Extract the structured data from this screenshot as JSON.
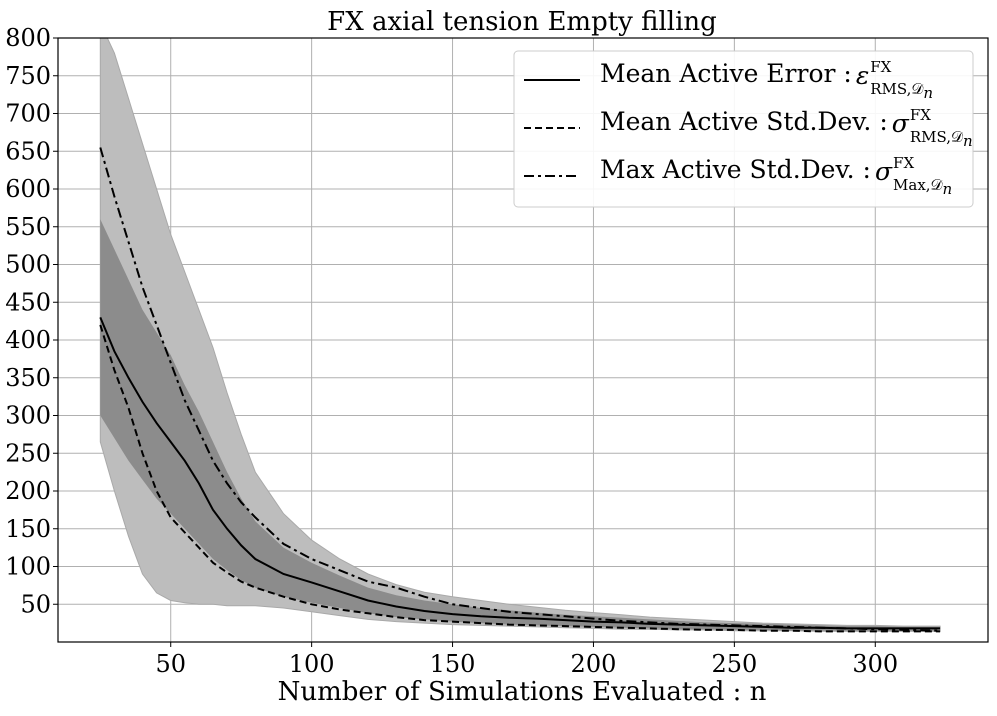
{
  "chart_data": {
    "type": "line",
    "title": "FX axial tension Empty filling",
    "xlabel": "Number of Simulations Evaluated : n",
    "ylabel": "",
    "xlim": [
      10,
      340
    ],
    "ylim": [
      0,
      800
    ],
    "xticks": [
      50,
      100,
      150,
      200,
      250,
      300
    ],
    "yticks": [
      50,
      100,
      150,
      200,
      250,
      300,
      350,
      400,
      450,
      500,
      550,
      600,
      650,
      700,
      750,
      800
    ],
    "grid": true,
    "legend_position": "top-right",
    "x": [
      25,
      30,
      35,
      40,
      45,
      50,
      55,
      60,
      65,
      70,
      75,
      80,
      90,
      100,
      110,
      120,
      130,
      140,
      150,
      160,
      170,
      180,
      190,
      200,
      210,
      220,
      230,
      240,
      250,
      260,
      270,
      280,
      290,
      300,
      310,
      323
    ],
    "series": [
      {
        "name": "Mean Active Error",
        "legend_symbol": "ε",
        "legend_sup": "FX",
        "legend_sub": "RMS,𝒟",
        "legend_sub2": "n",
        "line_style": "solid",
        "values": [
          430,
          385,
          350,
          318,
          290,
          265,
          240,
          210,
          175,
          150,
          128,
          110,
          90,
          79,
          67,
          55,
          47,
          41,
          37,
          34,
          32,
          31,
          29,
          27,
          26,
          24,
          23,
          22,
          21,
          20,
          19,
          19,
          18,
          18,
          18,
          18
        ],
        "band_inner_upper": [
          560,
          520,
          480,
          440,
          410,
          380,
          340,
          305,
          265,
          225,
          190,
          160,
          125,
          105,
          88,
          72,
          62,
          55,
          50,
          45,
          42,
          39,
          36,
          34,
          32,
          30,
          28,
          26,
          25,
          24,
          23,
          22,
          21,
          21,
          20,
          20
        ],
        "band_inner_lower": [
          300,
          270,
          240,
          215,
          190,
          170,
          150,
          130,
          110,
          95,
          82,
          72,
          60,
          52,
          45,
          38,
          33,
          30,
          27,
          25,
          23,
          22,
          21,
          20,
          19,
          18,
          17,
          17,
          16,
          16,
          15,
          15,
          15,
          15,
          15,
          15
        ],
        "band_outer_upper": [
          820,
          780,
          720,
          660,
          600,
          540,
          490,
          440,
          390,
          330,
          275,
          225,
          170,
          135,
          110,
          90,
          76,
          66,
          60,
          55,
          50,
          46,
          42,
          39,
          36,
          33,
          31,
          29,
          27,
          25,
          24,
          23,
          22,
          22,
          21,
          21
        ],
        "band_outer_lower": [
          265,
          200,
          140,
          90,
          65,
          55,
          52,
          50,
          50,
          48,
          48,
          48,
          45,
          40,
          35,
          30,
          27,
          25,
          23,
          22,
          21,
          20,
          19,
          18,
          17,
          17,
          16,
          16,
          15,
          15,
          15,
          14,
          14,
          14,
          14,
          14
        ]
      },
      {
        "name": "Mean Active Std.Dev.",
        "legend_symbol": "σ",
        "legend_sup": "FX",
        "legend_sub": "RMS,𝒟",
        "legend_sub2": "n",
        "line_style": "dashed",
        "values": [
          420,
          360,
          310,
          250,
          200,
          165,
          145,
          125,
          105,
          92,
          80,
          72,
          60,
          50,
          43,
          38,
          33,
          29,
          27,
          25,
          23,
          22,
          21,
          20,
          19,
          18,
          17,
          16,
          16,
          15,
          15,
          14,
          14,
          14,
          14,
          14
        ]
      },
      {
        "name": "Max Active Std.Dev.",
        "legend_symbol": "σ",
        "legend_sup": "FX",
        "legend_sub": "Max,𝒟",
        "legend_sub2": "n",
        "line_style": "dashdot",
        "values": [
          655,
          590,
          530,
          470,
          420,
          370,
          320,
          280,
          240,
          210,
          185,
          165,
          130,
          110,
          95,
          80,
          72,
          60,
          50,
          45,
          40,
          37,
          34,
          31,
          28,
          26,
          24,
          23,
          22,
          21,
          20,
          19,
          18,
          17,
          16,
          15
        ]
      }
    ]
  }
}
